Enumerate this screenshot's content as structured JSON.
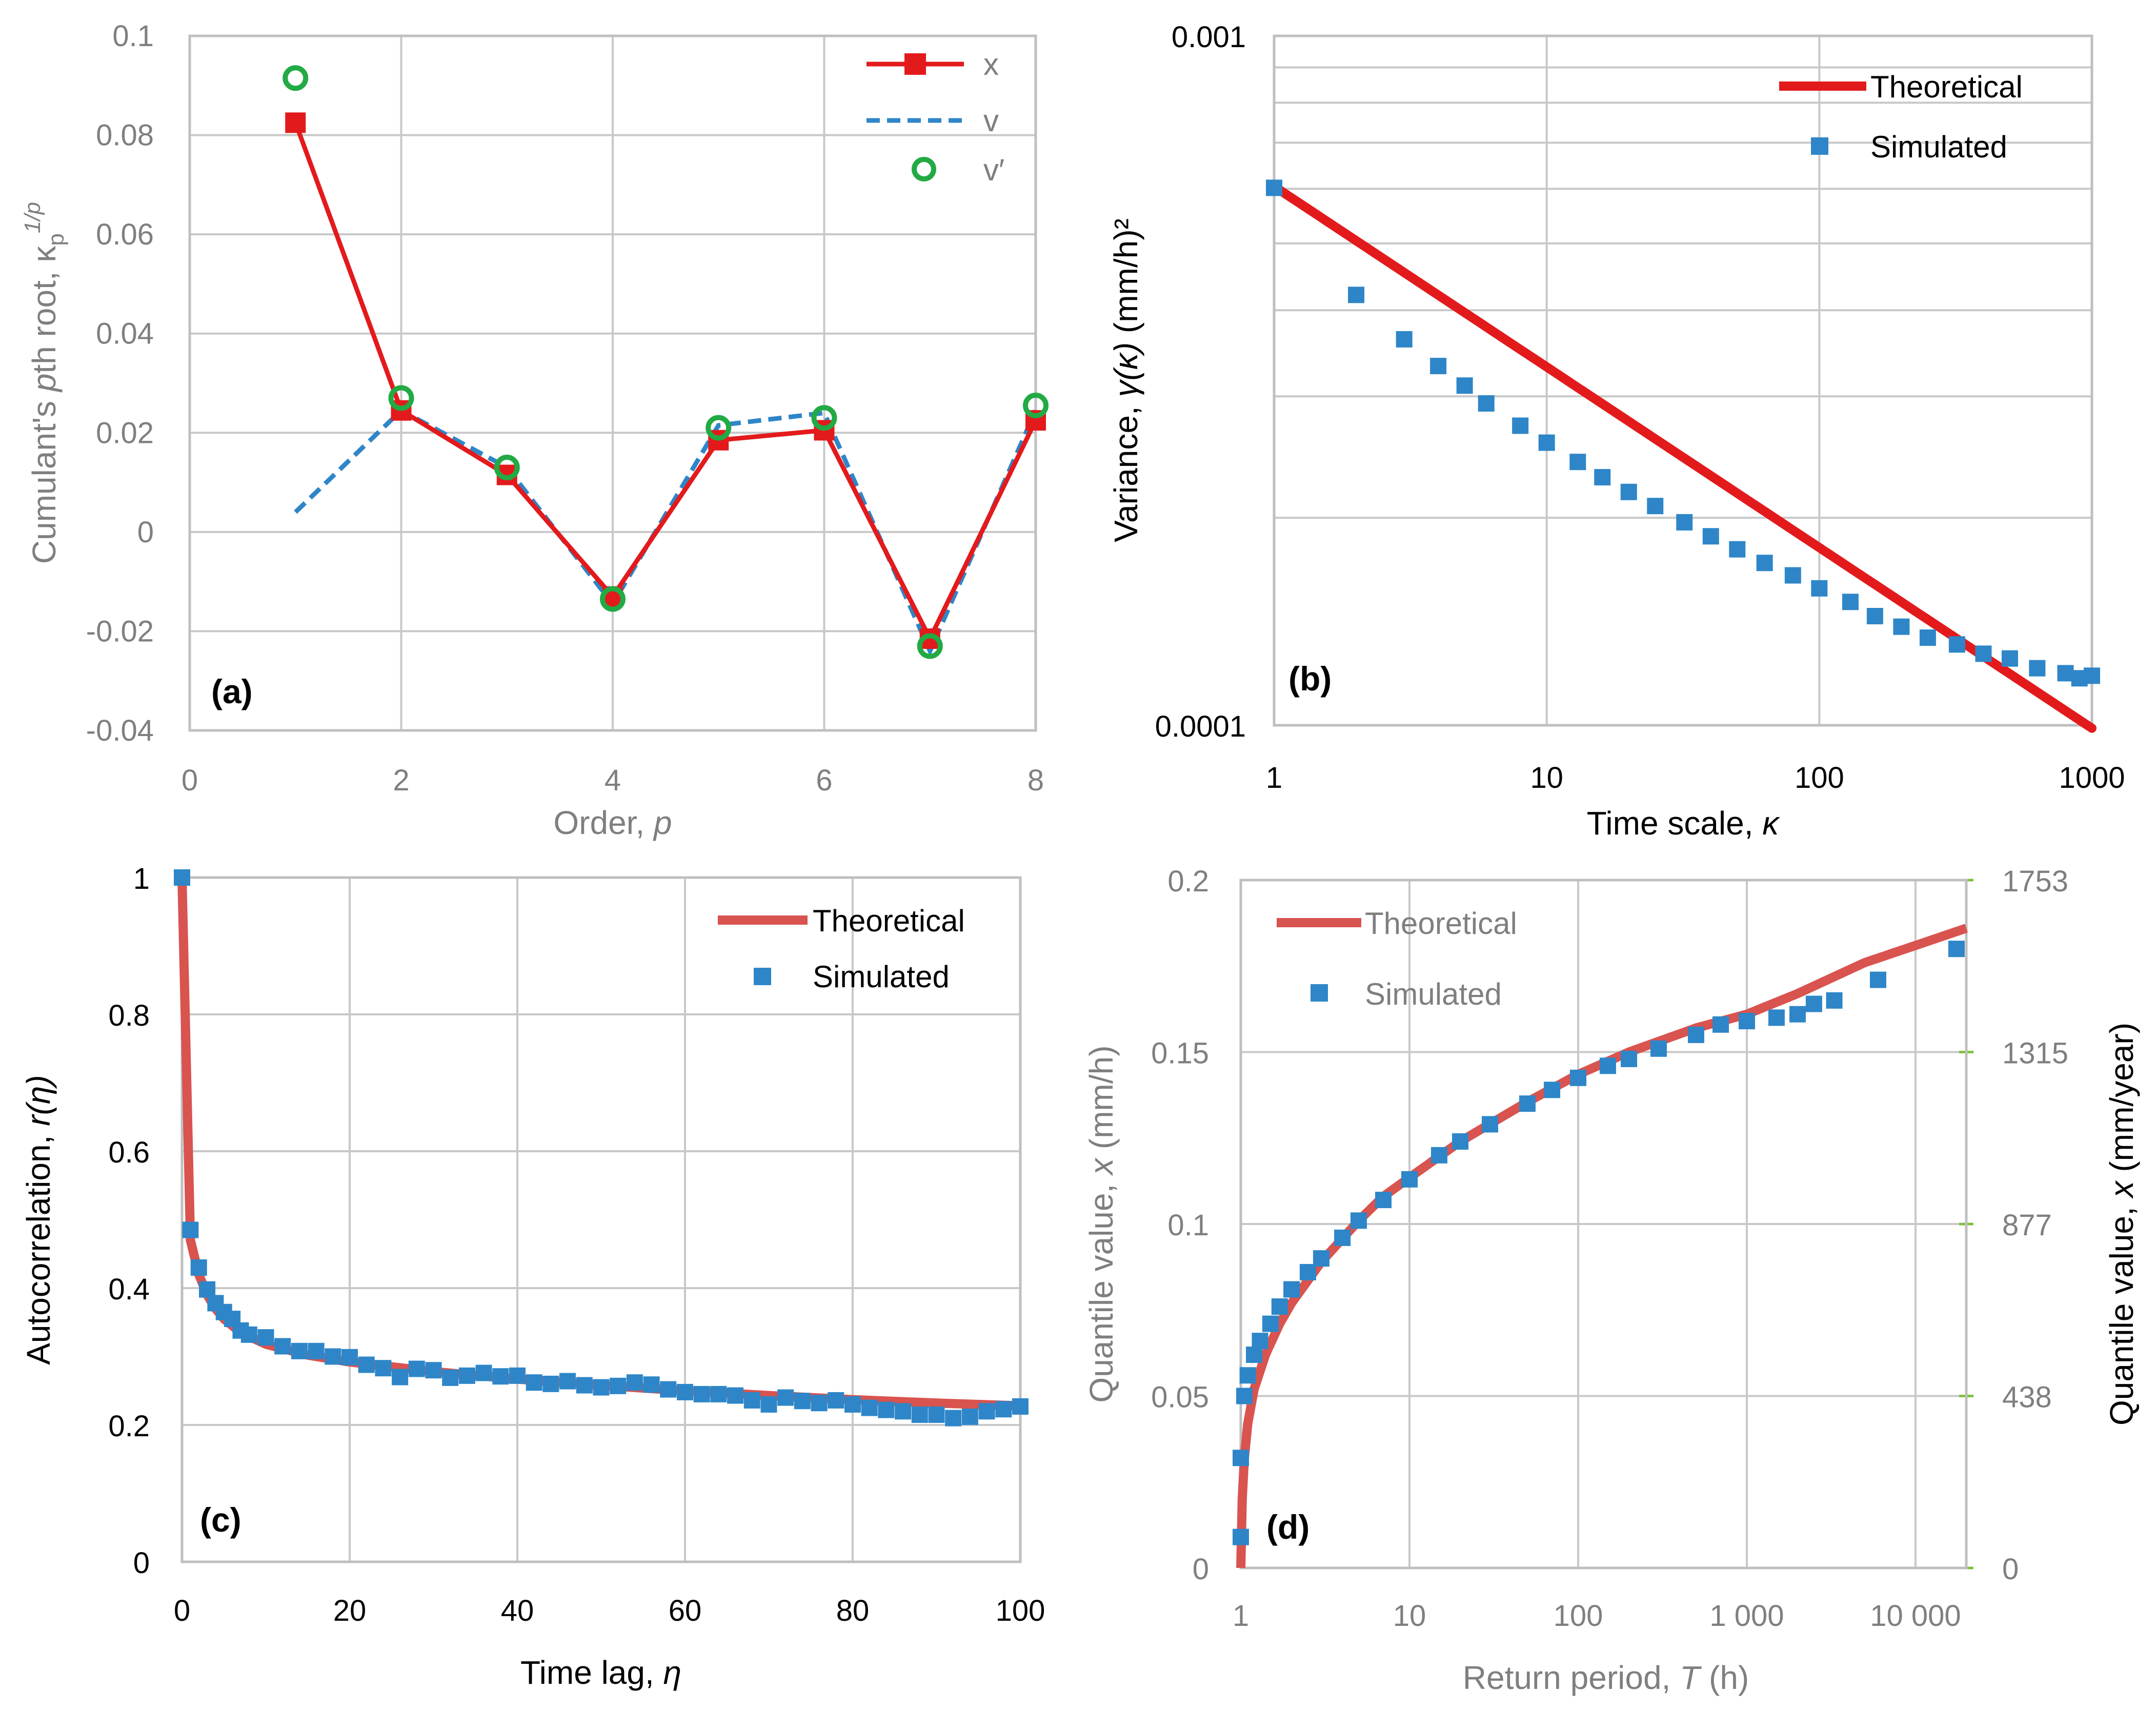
{
  "figure": {
    "panel_letters": [
      "(a)",
      "(b)",
      "(c)",
      "(d)"
    ]
  },
  "chart_data": [
    {
      "panel": "(a)",
      "type": "line",
      "title": "",
      "xlabel": "Order, p",
      "ylabel": "Cumulant's pth root, κp^1/p",
      "ylabel_parts": {
        "a": "Cumulant's ",
        "p": "p",
        "b": "th root, κ",
        "sub": "p",
        "sup": "1/p"
      },
      "xlabel_parts": {
        "a": "Order, ",
        "b": "p"
      },
      "xlim": [
        0,
        8
      ],
      "ylim": [
        -0.04,
        0.1
      ],
      "x_ticks": [
        "0",
        "2",
        "4",
        "6",
        "8"
      ],
      "y_ticks": [
        "-0.04",
        "-0.02",
        "0",
        "0.02",
        "0.04",
        "0.06",
        "0.08",
        "0.1"
      ],
      "x_tick_values": [
        0,
        2,
        4,
        6,
        8
      ],
      "y_tick_values": [
        -0.04,
        -0.02,
        0,
        0.02,
        0.04,
        0.06,
        0.08,
        0.1
      ],
      "series": [
        {
          "name": "x",
          "style": "line-square",
          "color": "#e31a1c",
          "x": [
            1,
            2,
            3,
            4,
            5,
            6,
            7,
            8
          ],
          "values": [
            0.0825,
            0.0245,
            0.0115,
            -0.013,
            0.0185,
            0.0205,
            -0.0215,
            0.0225
          ]
        },
        {
          "name": "v",
          "style": "dashed",
          "color": "#2e86c8",
          "x": [
            1,
            2,
            3,
            4,
            5,
            6,
            7,
            8
          ],
          "values": [
            0.004,
            0.0245,
            0.013,
            -0.0145,
            0.0215,
            0.024,
            -0.024,
            0.0245
          ]
        },
        {
          "name": "v′",
          "style": "circle",
          "color": "#22aa44",
          "x": [
            1,
            2,
            3,
            4,
            5,
            6,
            7,
            8
          ],
          "values": [
            0.0915,
            0.027,
            0.013,
            -0.0135,
            0.021,
            0.023,
            -0.023,
            0.0255
          ]
        }
      ],
      "legend_position": "top-right"
    },
    {
      "panel": "(b)",
      "type": "line",
      "scale": "log-log",
      "title": "",
      "xlabel": "Time scale, κ",
      "ylabel": "Variance, γ(κ) (mm/h)²",
      "xlabel_parts": {
        "a": "Time scale, ",
        "b": "κ"
      },
      "ylabel_parts": {
        "a": "Variance, ",
        "b": "γ(κ)",
        "c": " (mm/h)²"
      },
      "xlim": [
        1,
        1000
      ],
      "ylim": [
        0.0001,
        0.001
      ],
      "x_ticks": [
        "1",
        "10",
        "100",
        "1000"
      ],
      "y_ticks": [
        "0.0001",
        "0.001"
      ],
      "x_tick_values": [
        1,
        10,
        100,
        1000
      ],
      "y_tick_values": [
        0.0001,
        0.001
      ],
      "series": [
        {
          "name": "Theoretical",
          "style": "thick-line",
          "color": "#e31a1c",
          "model": {
            "kind": "power",
            "a": 0.000605,
            "b": -0.262
          },
          "x_range": [
            1,
            1000
          ]
        },
        {
          "name": "Simulated",
          "style": "square",
          "color": "#2e86c8",
          "x": [
            1,
            2,
            3,
            4,
            5,
            6,
            8,
            10,
            13,
            16,
            20,
            25,
            32,
            40,
            50,
            63,
            80,
            100,
            130,
            160,
            200,
            250,
            320,
            400,
            500,
            630,
            800,
            900,
            1000
          ],
          "values": [
            0.000602,
            0.000421,
            0.000363,
            0.000332,
            0.000311,
            0.000293,
            0.000272,
            0.000257,
            0.000241,
            0.000229,
            0.000218,
            0.000208,
            0.000197,
            0.000188,
            0.00018,
            0.000172,
            0.000165,
            0.000158,
            0.000151,
            0.000144,
            0.000139,
            0.000134,
            0.000131,
            0.000127,
            0.000125,
            0.000121,
            0.000119,
            0.000117,
            0.000118
          ]
        }
      ],
      "legend_position": "top-right"
    },
    {
      "panel": "(c)",
      "type": "line",
      "title": "",
      "xlabel": "Time lag, η",
      "ylabel": "Autocorrelation, r(η)",
      "xlabel_parts": {
        "a": "Time lag, ",
        "b": "η"
      },
      "ylabel_parts": {
        "a": "Autocorrelation, ",
        "b": "r(η)"
      },
      "xlim": [
        0,
        100
      ],
      "ylim": [
        0,
        1
      ],
      "x_ticks": [
        "0",
        "20",
        "40",
        "60",
        "80",
        "100"
      ],
      "y_ticks": [
        "0",
        "0.2",
        "0.4",
        "0.6",
        "0.8",
        "1"
      ],
      "x_tick_values": [
        0,
        20,
        40,
        60,
        80,
        100
      ],
      "y_tick_values": [
        0,
        0.2,
        0.4,
        0.6,
        0.8,
        1
      ],
      "series": [
        {
          "name": "Theoretical",
          "style": "thick-line",
          "color": "#d9534f",
          "x": [
            0,
            1,
            2,
            3,
            4,
            5,
            7,
            10,
            15,
            20,
            30,
            40,
            50,
            60,
            70,
            80,
            90,
            100
          ],
          "values": [
            1,
            0.47,
            0.42,
            0.39,
            0.37,
            0.355,
            0.335,
            0.318,
            0.302,
            0.292,
            0.278,
            0.267,
            0.258,
            0.25,
            0.243,
            0.237,
            0.232,
            0.228
          ]
        },
        {
          "name": "Simulated",
          "style": "square",
          "color": "#2e86c8",
          "x": [
            0,
            1,
            2,
            3,
            4,
            5,
            6,
            7,
            8,
            10,
            12,
            14,
            16,
            18,
            20,
            22,
            24,
            26,
            28,
            30,
            32,
            34,
            36,
            38,
            40,
            42,
            44,
            46,
            48,
            50,
            52,
            54,
            56,
            58,
            60,
            62,
            64,
            66,
            68,
            70,
            72,
            74,
            76,
            78,
            80,
            82,
            84,
            86,
            88,
            90,
            92,
            94,
            96,
            98,
            100
          ],
          "values": [
            1,
            0.485,
            0.43,
            0.398,
            0.378,
            0.365,
            0.355,
            0.338,
            0.332,
            0.328,
            0.315,
            0.308,
            0.308,
            0.3,
            0.299,
            0.288,
            0.283,
            0.27,
            0.282,
            0.28,
            0.269,
            0.272,
            0.276,
            0.271,
            0.272,
            0.262,
            0.26,
            0.264,
            0.258,
            0.255,
            0.257,
            0.262,
            0.259,
            0.252,
            0.248,
            0.245,
            0.245,
            0.243,
            0.236,
            0.23,
            0.24,
            0.235,
            0.232,
            0.236,
            0.23,
            0.225,
            0.222,
            0.22,
            0.215,
            0.215,
            0.21,
            0.212,
            0.22,
            0.223,
            0.227
          ]
        }
      ],
      "legend_position": "top-right"
    },
    {
      "panel": "(d)",
      "type": "line",
      "scale": "log-x",
      "title": "",
      "xlabel": "Return period, T (h)",
      "ylabel": "Quantile value, x (mm/h)",
      "ylabel2": "Quantile value, x (mm/year)",
      "xlabel_parts": {
        "a": "Return period, ",
        "b": "T",
        "c": " (h)"
      },
      "ylabel_parts": {
        "a": "Quantile value, ",
        "b": "x",
        "c": " (mm/h)"
      },
      "ylabel2_parts": {
        "a": "Quantile value, ",
        "b": "x",
        "c": " (mm/year)"
      },
      "xlim": [
        1,
        20000
      ],
      "ylim": [
        0,
        0.2
      ],
      "x_ticks": [
        "1",
        "10",
        "100",
        "1 000",
        "10 000"
      ],
      "y_ticks": [
        "0",
        "0.05",
        "0.1",
        "0.15",
        "0.2"
      ],
      "y2_ticks": [
        "0",
        "438",
        "877",
        "1315",
        "1753"
      ],
      "x_tick_values": [
        1,
        10,
        100,
        1000,
        10000
      ],
      "y_tick_values": [
        0,
        0.05,
        0.1,
        0.15,
        0.2
      ],
      "series": [
        {
          "name": "Theoretical",
          "style": "thick-line",
          "color": "#d9534f",
          "x": [
            1.0,
            1.02,
            1.05,
            1.1,
            1.2,
            1.4,
            1.7,
            2,
            3,
            5,
            7,
            10,
            20,
            50,
            100,
            200,
            500,
            1000,
            2000,
            5000,
            10000,
            20000
          ],
          "values": [
            0.0,
            0.02,
            0.032,
            0.042,
            0.052,
            0.062,
            0.071,
            0.077,
            0.089,
            0.101,
            0.108,
            0.1135,
            0.124,
            0.1355,
            0.1435,
            0.15,
            0.157,
            0.161,
            0.167,
            0.176,
            0.181,
            0.186
          ]
        },
        {
          "name": "Simulated",
          "style": "square",
          "color": "#2e86c8",
          "x": [
            1.0,
            1.0,
            1.05,
            1.1,
            1.2,
            1.3,
            1.5,
            1.7,
            2,
            2.5,
            3,
            4,
            5,
            7,
            10,
            15,
            20,
            30,
            50,
            70,
            100,
            150,
            200,
            300,
            500,
            700,
            1000,
            1500,
            2000,
            2500,
            3300,
            6000,
            17500
          ],
          "values": [
            0.009,
            0.032,
            0.05,
            0.056,
            0.062,
            0.066,
            0.071,
            0.076,
            0.081,
            0.086,
            0.09,
            0.096,
            0.101,
            0.107,
            0.113,
            0.12,
            0.124,
            0.129,
            0.135,
            0.139,
            0.1425,
            0.146,
            0.148,
            0.151,
            0.155,
            0.158,
            0.159,
            0.16,
            0.161,
            0.164,
            0.165,
            0.171,
            0.18
          ]
        }
      ],
      "legend_position": "top-left"
    }
  ]
}
